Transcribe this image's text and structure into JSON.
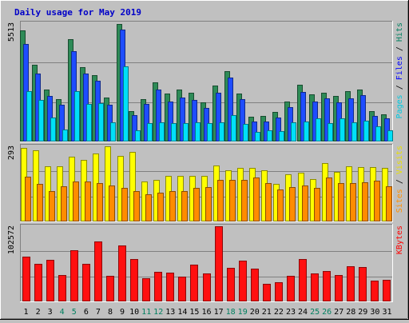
{
  "chart_data": {
    "type": "bar",
    "title": "Daily usage for May 2019",
    "categories": [
      "1",
      "2",
      "3",
      "4",
      "5",
      "6",
      "7",
      "8",
      "9",
      "10",
      "11",
      "12",
      "13",
      "14",
      "15",
      "16",
      "17",
      "18",
      "19",
      "20",
      "21",
      "22",
      "23",
      "24",
      "25",
      "26",
      "27",
      "28",
      "29",
      "30",
      "31"
    ],
    "weekend_days": [
      "4",
      "5",
      "11",
      "12",
      "18",
      "19",
      "25",
      "26"
    ],
    "panels": [
      {
        "name": "hits-files-pages",
        "max_label": "5513",
        "ymax": 5513,
        "right_label": [
          {
            "text": "Pages",
            "color": "#00c8e0"
          },
          {
            "text": " / ",
            "color": "#000000"
          },
          {
            "text": "Files",
            "color": "#0000ff"
          },
          {
            "text": " / ",
            "color": "#000000"
          },
          {
            "text": "Hits",
            "color": "#008060"
          }
        ],
        "series": [
          {
            "name": "Hits",
            "color": "#2e8b57",
            "values": [
              5160,
              3590,
              2410,
              1980,
              4750,
              3460,
              3080,
              2040,
              5470,
              1420,
              1990,
              2750,
              2240,
              2410,
              2260,
              1820,
              2600,
              3280,
              2220,
              1140,
              1180,
              1360,
              1850,
              2630,
              2210,
              2270,
              2140,
              2330,
              2410,
              1410,
              1280
            ]
          },
          {
            "name": "Files",
            "color": "#1e4dff",
            "values": [
              4530,
              3170,
              2110,
              1700,
              4200,
              3180,
              2820,
              1720,
              5210,
              1220,
              1740,
              2420,
              1880,
              2050,
              1930,
              1560,
              2280,
              2980,
              1960,
              920,
              930,
              1120,
              1620,
              2310,
              1880,
              2000,
              1810,
              2020,
              2150,
              1210,
              1080
            ]
          },
          {
            "name": "Pages",
            "color": "#00e0f8",
            "values": [
              2340,
              1930,
              1100,
              560,
              2350,
              1750,
              1780,
              900,
              3510,
              540,
              850,
              900,
              870,
              850,
              890,
              860,
              900,
              1220,
              820,
              440,
              520,
              500,
              880,
              940,
              1090,
              860,
              1080,
              900,
              980,
              720,
              540
            ]
          }
        ]
      },
      {
        "name": "visits-sites",
        "max_label": "293",
        "ymax": 293,
        "right_label": [
          {
            "text": "Sites",
            "color": "#ff9000"
          },
          {
            "text": " / ",
            "color": "#000000"
          },
          {
            "text": "Visits",
            "color": "#e8e000"
          }
        ],
        "series": [
          {
            "name": "Visits",
            "color": "#ffff00",
            "values": [
              288,
              276,
              216,
              216,
              254,
              240,
              266,
              292,
              257,
              270,
              157,
              163,
              178,
              178,
              178,
              177,
              219,
              200,
              208,
              208,
              200,
              146,
              183,
              191,
              164,
              226,
              194,
              216,
              213,
              213,
              210
            ]
          },
          {
            "name": "Sites",
            "color": "#ff8c00",
            "values": [
              175,
              146,
              119,
              138,
              155,
              155,
              151,
              141,
              131,
              117,
              106,
              111,
              119,
              119,
              132,
              133,
              163,
              161,
              161,
              171,
              150,
              125,
              134,
              139,
              131,
              171,
              151,
              151,
              152,
              158,
              138
            ]
          }
        ]
      },
      {
        "name": "kbytes",
        "max_label": "102572",
        "ymax": 102572,
        "right_label": [
          {
            "text": "KBytes",
            "color": "#ff0000"
          }
        ],
        "series": [
          {
            "name": "KBytes",
            "color": "#ff1010",
            "values": [
              61600,
              51000,
              56500,
              35700,
              70300,
              51800,
              81400,
              35200,
              76800,
              58000,
              31800,
              40500,
              39200,
              33900,
              50400,
              38500,
              102572,
              46100,
              55400,
              44700,
              24200,
              26700,
              34500,
              57300,
              37700,
              41700,
              36500,
              47700,
              47000,
              28700,
              29700
            ]
          }
        ]
      }
    ]
  }
}
